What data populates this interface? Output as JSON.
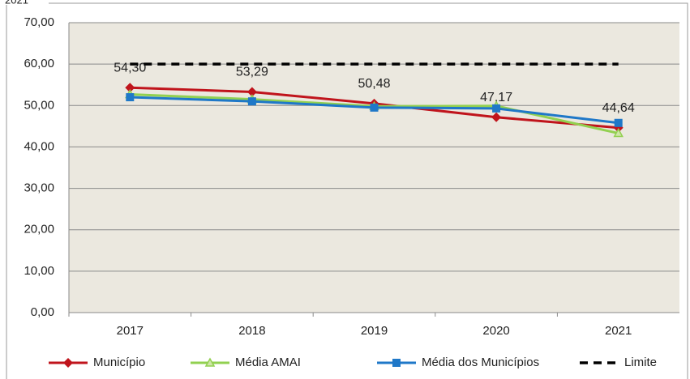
{
  "chart_data": {
    "type": "line",
    "subtitle": "2021",
    "categories": [
      "2017",
      "2018",
      "2019",
      "2020",
      "2021"
    ],
    "series": [
      {
        "name": "Município",
        "color": "#c0141c",
        "marker": "diamond",
        "values": [
          54.3,
          53.29,
          50.48,
          47.17,
          44.64
        ],
        "value_labels": [
          "54,30",
          "53,29",
          "50,48",
          "47,17",
          "44,64"
        ]
      },
      {
        "name": "Média AMAI",
        "color": "#92d050",
        "marker": "triangle",
        "values": [
          52.7,
          51.5,
          49.8,
          49.9,
          43.3
        ]
      },
      {
        "name": "Média dos Municípios",
        "color": "#1f78c8",
        "marker": "square",
        "values": [
          52.0,
          51.0,
          49.5,
          49.3,
          45.8
        ]
      },
      {
        "name": "Limite",
        "color": "#000000",
        "marker": "none",
        "dashed": true,
        "values": [
          60,
          60,
          60,
          60,
          60
        ]
      }
    ],
    "ylim": [
      0,
      70
    ],
    "yticks": [
      {
        "value": 0,
        "label": "0,00"
      },
      {
        "value": 10,
        "label": "10,00"
      },
      {
        "value": 20,
        "label": "20,00"
      },
      {
        "value": 30,
        "label": "30,00"
      },
      {
        "value": 40,
        "label": "40,00"
      },
      {
        "value": 50,
        "label": "50,00"
      },
      {
        "value": 60,
        "label": "60,00"
      },
      {
        "value": 70,
        "label": "70,00"
      }
    ],
    "grid": true,
    "legend": "bottom"
  }
}
